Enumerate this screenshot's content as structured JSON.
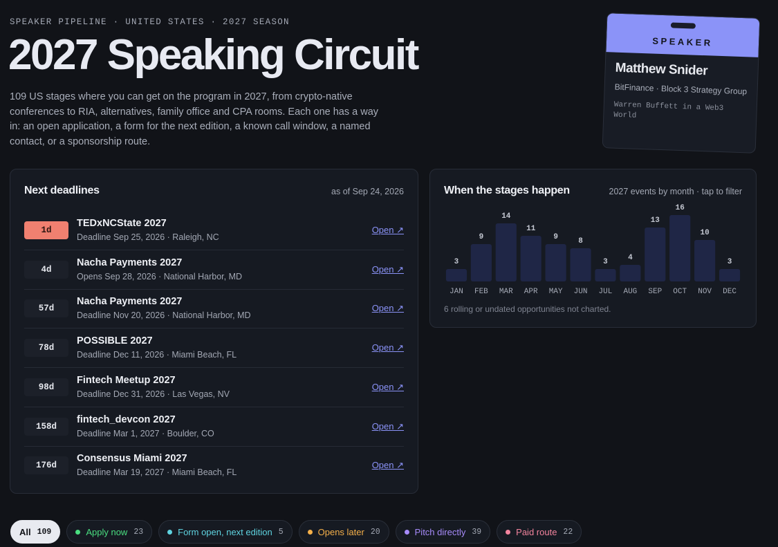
{
  "header": {
    "eyebrow": "SPEAKER PIPELINE · UNITED STATES · 2027 SEASON",
    "title": "2027 Speaking Circuit",
    "intro": "109 US stages where you can get on the program in 2027, from crypto-native conferences to RIA, alternatives, family office and CPA rooms. Each one has a way in: an open application, a form for the next edition, a known call window, a named contact, or a sponsorship route."
  },
  "badge": {
    "label": "SPEAKER",
    "name": "Matthew Snider",
    "org": "BitFinance · Block 3 Strategy Group",
    "talk": "Warren Buffett in a Web3 World"
  },
  "deadlines": {
    "title": "Next deadlines",
    "as_of": "as of Sep 24, 2026",
    "items": [
      {
        "days": "1d",
        "name": "TEDxNCState 2027",
        "detail": "Deadline Sep 25, 2026 · Raleigh, NC",
        "link": "Open ↗"
      },
      {
        "days": "4d",
        "name": "Nacha Payments 2027",
        "detail": "Opens Sep 28, 2026 · National Harbor, MD",
        "link": "Open ↗"
      },
      {
        "days": "57d",
        "name": "Nacha Payments 2027",
        "detail": "Deadline Nov 20, 2026 · National Harbor, MD",
        "link": "Open ↗"
      },
      {
        "days": "78d",
        "name": "POSSIBLE 2027",
        "detail": "Deadline Dec 11, 2026 · Miami Beach, FL",
        "link": "Open ↗"
      },
      {
        "days": "98d",
        "name": "Fintech Meetup 2027",
        "detail": "Deadline Dec 31, 2026 · Las Vegas, NV",
        "link": "Open ↗"
      },
      {
        "days": "158d",
        "name": "fintech_devcon 2027",
        "detail": "Deadline Mar 1, 2027 · Boulder, CO",
        "link": "Open ↗"
      },
      {
        "days": "176d",
        "name": "Consensus Miami 2027",
        "detail": "Deadline Mar 19, 2027 · Miami Beach, FL",
        "link": "Open ↗"
      }
    ]
  },
  "chart_data": {
    "type": "bar",
    "title": "When the stages happen",
    "subtitle": "2027 events by month · tap to filter",
    "categories": [
      "JAN",
      "FEB",
      "MAR",
      "APR",
      "MAY",
      "JUN",
      "JUL",
      "AUG",
      "SEP",
      "OCT",
      "NOV",
      "DEC"
    ],
    "values": [
      3,
      9,
      14,
      11,
      9,
      8,
      3,
      4,
      13,
      16,
      10,
      3
    ],
    "color": "#1f2646",
    "note": "6 rolling or undated opportunities not charted."
  },
  "filters": [
    {
      "label": "All",
      "count": 109
    },
    {
      "label": "Apply now",
      "count": 23,
      "color": "#4ade80"
    },
    {
      "label": "Form open, next edition",
      "count": 5,
      "color": "#5fd3e0"
    },
    {
      "label": "Opens later",
      "count": 20,
      "color": "#f5b04a"
    },
    {
      "label": "Pitch directly",
      "count": 39,
      "color": "#a78bfa"
    },
    {
      "label": "Paid route",
      "count": 22,
      "color": "#f3849e"
    }
  ]
}
